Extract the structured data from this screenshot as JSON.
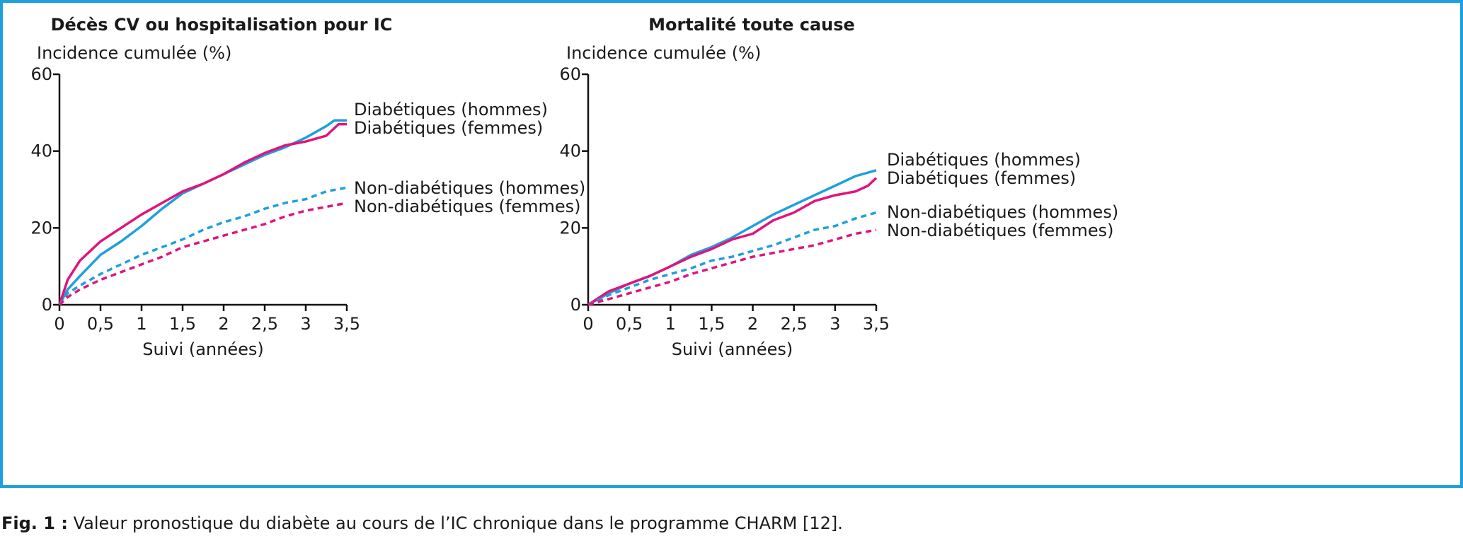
{
  "frame_color": "#1ea0dc",
  "colors": {
    "men": "#1ea0dc",
    "women": "#e0147c",
    "axis": "#111111"
  },
  "caption": {
    "prefix": "Fig. 1 :",
    "text": " Valeur pronostique du diabète au cours de l’IC chronique dans le programme CHARM [12]."
  },
  "chart_data": [
    {
      "type": "line",
      "title": "Décès CV ou hospitalisation pour IC",
      "ylabel": "Incidence cumulée (%)",
      "xlabel": "Suivi (années)",
      "xlim": [
        0,
        3.5
      ],
      "ylim": [
        0,
        60
      ],
      "xticks": [
        "0",
        "0,5",
        "1",
        "1,5",
        "2",
        "2,5",
        "3",
        "3,5"
      ],
      "yticks": [
        "0",
        "20",
        "40",
        "60"
      ],
      "grid": false,
      "series": [
        {
          "name": "Diabétiques (hommes)",
          "style": "solid",
          "color": "#1ea0dc",
          "x": [
            0,
            0.1,
            0.25,
            0.5,
            0.75,
            1,
            1.25,
            1.5,
            1.75,
            2,
            2.25,
            2.5,
            2.75,
            3,
            3.25,
            3.35,
            3.5
          ],
          "y": [
            0,
            4,
            7.5,
            13,
            16.5,
            20.5,
            25,
            29,
            31.5,
            34,
            36.5,
            39,
            41,
            43.5,
            46.5,
            48,
            48
          ]
        },
        {
          "name": "Diabétiques (femmes)",
          "style": "solid",
          "color": "#e0147c",
          "x": [
            0,
            0.1,
            0.25,
            0.5,
            0.75,
            1,
            1.25,
            1.5,
            1.75,
            2,
            2.25,
            2.5,
            2.75,
            3,
            3.25,
            3.4,
            3.5
          ],
          "y": [
            0,
            6.5,
            11.5,
            16.5,
            20,
            23.5,
            26.5,
            29.5,
            31.5,
            34,
            37,
            39.5,
            41.5,
            42.5,
            44,
            47,
            47
          ]
        },
        {
          "name": "Non-diabétiques (hommes)",
          "style": "dashed",
          "color": "#1ea0dc",
          "x": [
            0,
            0.1,
            0.25,
            0.5,
            0.75,
            1,
            1.25,
            1.5,
            1.75,
            2,
            2.25,
            2.5,
            2.75,
            3,
            3.25,
            3.5
          ],
          "y": [
            0,
            3,
            5,
            8,
            10.5,
            13,
            15,
            17,
            19.5,
            21.5,
            23,
            25,
            26.5,
            27.5,
            29.5,
            30.5
          ]
        },
        {
          "name": "Non-diabétiques (femmes)",
          "style": "dashed",
          "color": "#e0147c",
          "x": [
            0,
            0.1,
            0.25,
            0.5,
            0.75,
            1,
            1.25,
            1.5,
            1.75,
            2,
            2.25,
            2.5,
            2.75,
            3,
            3.25,
            3.5
          ],
          "y": [
            0,
            2,
            4,
            6.5,
            8.5,
            10.5,
            12.5,
            15,
            16.5,
            18,
            19.5,
            21,
            23,
            24.5,
            25.5,
            26.5
          ]
        }
      ]
    },
    {
      "type": "line",
      "title": "Mortalité toute cause",
      "ylabel": "Incidence cumulée (%)",
      "xlabel": "Suivi (années)",
      "xlim": [
        0,
        3.5
      ],
      "ylim": [
        0,
        60
      ],
      "xticks": [
        "0",
        "0,5",
        "1",
        "1,5",
        "2",
        "2,5",
        "3",
        "3,5"
      ],
      "yticks": [
        "0",
        "20",
        "40",
        "60"
      ],
      "grid": false,
      "series": [
        {
          "name": "Diabétiques (hommes)",
          "style": "solid",
          "color": "#1ea0dc",
          "x": [
            0,
            0.25,
            0.5,
            0.75,
            1,
            1.25,
            1.5,
            1.75,
            2,
            2.25,
            2.5,
            2.75,
            3,
            3.25,
            3.5
          ],
          "y": [
            0,
            3,
            5.5,
            7.5,
            10,
            13,
            15,
            17.5,
            20.5,
            23.5,
            26,
            28.5,
            31,
            33.5,
            35
          ]
        },
        {
          "name": "Diabétiques (femmes)",
          "style": "solid",
          "color": "#e0147c",
          "x": [
            0,
            0.25,
            0.5,
            0.75,
            1,
            1.25,
            1.5,
            1.75,
            2,
            2.25,
            2.5,
            2.75,
            3,
            3.25,
            3.4,
            3.5
          ],
          "y": [
            0,
            3.5,
            5.5,
            7.5,
            10,
            12.5,
            14.5,
            17,
            18.5,
            22,
            24,
            27,
            28.5,
            29.5,
            31,
            33
          ]
        },
        {
          "name": "Non-diabétiques (hommes)",
          "style": "dashed",
          "color": "#1ea0dc",
          "x": [
            0,
            0.25,
            0.5,
            0.75,
            1,
            1.25,
            1.5,
            1.75,
            2,
            2.25,
            2.5,
            2.75,
            3,
            3.25,
            3.5
          ],
          "y": [
            0,
            2.5,
            4.5,
            6.5,
            8,
            9.5,
            11.5,
            12.5,
            14,
            15.5,
            17.5,
            19.5,
            20.5,
            22.5,
            24
          ]
        },
        {
          "name": "Non-diabétiques (femmes)",
          "style": "dashed",
          "color": "#e0147c",
          "x": [
            0,
            0.25,
            0.5,
            0.75,
            1,
            1.25,
            1.5,
            1.75,
            2,
            2.25,
            2.5,
            2.75,
            3,
            3.25,
            3.5
          ],
          "y": [
            0,
            1.5,
            3,
            4.5,
            6,
            8,
            9.5,
            11,
            12.5,
            13.5,
            14.5,
            15.5,
            17,
            18.5,
            19.5
          ]
        }
      ]
    }
  ]
}
